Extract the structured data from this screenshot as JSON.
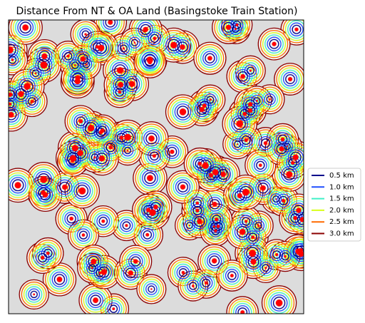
{
  "chart_data": {
    "type": "contour",
    "title": "Distance From NT & OA Land (Basingstoke Train Station)",
    "series": [
      {
        "name": "0.5 km",
        "color": "#00008b"
      },
      {
        "name": "1.0 km",
        "color": "#1f4fff"
      },
      {
        "name": "1.5 km",
        "color": "#3ff0c8"
      },
      {
        "name": "2.0 km",
        "color": "#d8ff1a"
      },
      {
        "name": "2.5 km",
        "color": "#ff6a00"
      },
      {
        "name": "3.0 km",
        "color": "#8b0000"
      }
    ],
    "land_color": "#ff0000",
    "legend": "center right"
  }
}
